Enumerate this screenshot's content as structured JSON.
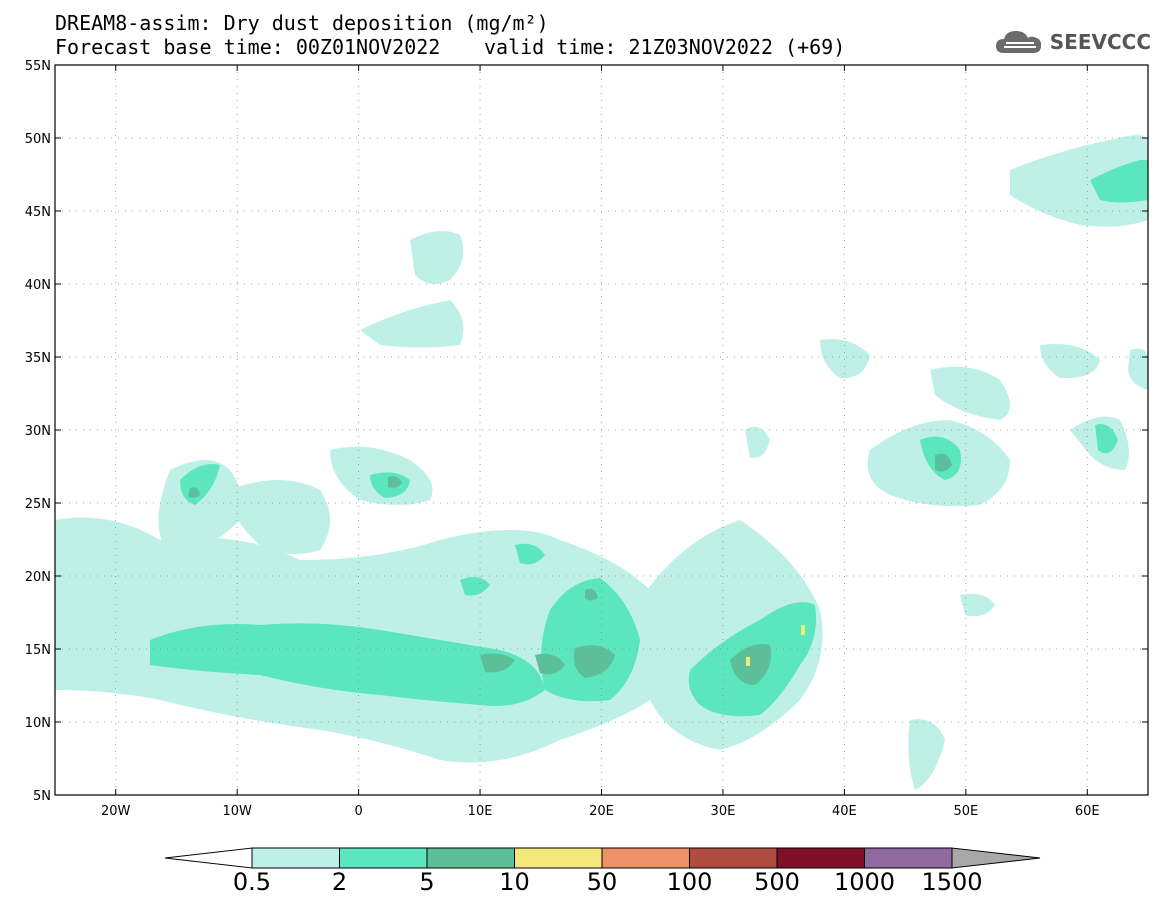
{
  "header": {
    "title_line1": "DREAM8-assim: Dry dust deposition (mg/m²)",
    "title_line2": "Forecast base time: 00Z01NOV2022",
    "valid_time": "valid time: 21Z03NOV2022 (+69)"
  },
  "logo": {
    "text": "SEEVCCC",
    "icon": "cloud-icon"
  },
  "map": {
    "lat_range": [
      5,
      55
    ],
    "lon_range": [
      -25,
      65
    ],
    "lat_labels": [
      "55N",
      "50N",
      "45N",
      "40N",
      "35N",
      "30N",
      "25N",
      "20N",
      "15N",
      "10N",
      "5N"
    ],
    "lon_labels": [
      "20W",
      "10W",
      "0",
      "10E",
      "20E",
      "30E",
      "40E",
      "50E",
      "60E"
    ]
  },
  "colorbar": {
    "labels": [
      "0.5",
      "2",
      "5",
      "10",
      "50",
      "100",
      "500",
      "1000",
      "1500"
    ],
    "colors": [
      "#bff0e8",
      "#5ce6bd",
      "#5cbf9a",
      "#f3e97b",
      "#ee9068",
      "#b04b3f",
      "#7d1028",
      "#8e6a9e",
      "#a8a8a8"
    ]
  }
}
